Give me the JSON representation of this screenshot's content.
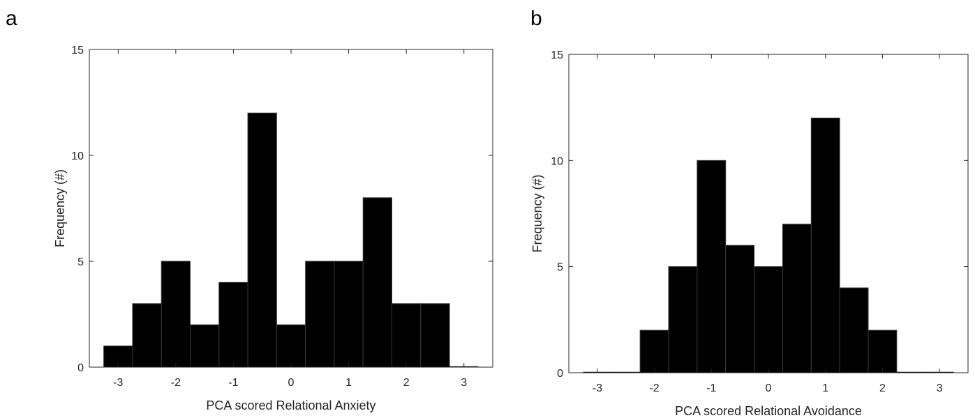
{
  "chart_data": [
    {
      "type": "bar",
      "panel_label": "a",
      "xlabel": "PCA scored Relational Anxiety",
      "ylabel": "Frequency (#)",
      "xlim": [
        -3.5,
        3.5
      ],
      "ylim": [
        0,
        15
      ],
      "xticks": [
        "-3",
        "-2",
        "-1",
        "0",
        "1",
        "2",
        "3"
      ],
      "yticks": [
        "0",
        "5",
        "10",
        "15"
      ],
      "bin_edges": [
        -3.25,
        -2.75,
        -2.25,
        -1.75,
        -1.25,
        -0.75,
        -0.25,
        0.25,
        0.75,
        1.25,
        1.75,
        2.25,
        2.75,
        3.25
      ],
      "values": [
        1,
        3,
        5,
        2,
        4,
        12,
        2,
        5,
        5,
        8,
        3,
        3,
        0
      ],
      "bar_color": "#000000"
    },
    {
      "type": "bar",
      "panel_label": "b",
      "xlabel": "PCA scored Relational Avoidance",
      "ylabel": "Frequency (#)",
      "xlim": [
        -3.5,
        3.5
      ],
      "ylim": [
        0,
        15
      ],
      "xticks": [
        "-3",
        "-2",
        "-1",
        "0",
        "1",
        "2",
        "3"
      ],
      "yticks": [
        "0",
        "5",
        "10",
        "15"
      ],
      "bin_edges": [
        -3.25,
        -2.75,
        -2.25,
        -1.75,
        -1.25,
        -0.75,
        -0.25,
        0.25,
        0.75,
        1.25,
        1.75,
        2.25,
        2.75,
        3.25
      ],
      "values": [
        0,
        0,
        2,
        5,
        10,
        6,
        5,
        7,
        12,
        4,
        2,
        0,
        0
      ],
      "bar_color": "#000000"
    }
  ]
}
